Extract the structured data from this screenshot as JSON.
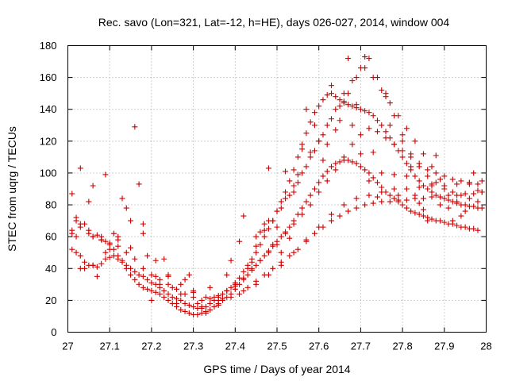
{
  "chart_data": {
    "type": "scatter",
    "title": "Rec. savo (Lon=321, Lat=-12, h=HE), days 026-027, 2014, window 004",
    "xlabel": "GPS time / Days of year 2014",
    "ylabel": "STEC from uqrg / TECUs",
    "xlim": [
      27,
      28
    ],
    "ylim": [
      0,
      180
    ],
    "xticks": [
      "27",
      "27.1",
      "27.2",
      "27.3",
      "27.4",
      "27.5",
      "27.6",
      "27.7",
      "27.8",
      "27.9",
      "28"
    ],
    "yticks": [
      "0",
      "20",
      "40",
      "60",
      "80",
      "100",
      "120",
      "140",
      "160",
      "180"
    ],
    "grid": true,
    "marker": "+",
    "color": "#cc0000",
    "series": [
      {
        "x": [
          27.01,
          27.01,
          27.02,
          27.03,
          27.04,
          27.05,
          27.06,
          27.07,
          27.08,
          27.09,
          27.1,
          27.11,
          27.12,
          27.13,
          27.14,
          27.15,
          27.16,
          27.17,
          27.18,
          27.19,
          27.2,
          27.21,
          27.22,
          27.23,
          27.24,
          27.25,
          27.26,
          27.27,
          27.28,
          27.29,
          27.3,
          27.31,
          27.32,
          27.33,
          27.34,
          27.35,
          27.36,
          27.37,
          27.38,
          27.39,
          27.4,
          27.41,
          27.42,
          27.43,
          27.44,
          27.45,
          27.46,
          27.47,
          27.48,
          27.49,
          27.5,
          27.51,
          27.52,
          27.53,
          27.54,
          27.55,
          27.56,
          27.57,
          27.58,
          27.59,
          27.6,
          27.61,
          27.62,
          27.63,
          27.64,
          27.65,
          27.66,
          27.67,
          27.68,
          27.69,
          27.7,
          27.71,
          27.72,
          27.73,
          27.74,
          27.75,
          27.76,
          27.77,
          27.78,
          27.79,
          27.8,
          27.81,
          27.82,
          27.83,
          27.84,
          27.85,
          27.86,
          27.87,
          27.88,
          27.89,
          27.9,
          27.91,
          27.92,
          27.93,
          27.94,
          27.95,
          27.96,
          27.97,
          27.98,
          27.99
        ],
        "y": [
          62,
          64,
          60,
          66,
          68,
          62,
          60,
          61,
          58,
          57,
          55,
          52,
          48,
          45,
          42,
          40,
          38,
          36,
          35,
          33,
          31,
          30,
          28,
          26,
          24,
          22,
          21,
          20,
          18,
          17,
          16,
          15,
          15,
          16,
          18,
          20,
          22,
          24,
          26,
          28,
          31,
          34,
          38,
          42,
          46,
          50,
          55,
          60,
          65,
          70,
          76,
          82,
          88,
          95,
          102,
          110,
          118,
          125,
          132,
          138,
          142,
          146,
          149,
          150,
          148,
          146,
          144,
          143,
          142,
          141,
          140,
          139,
          138,
          136,
          133,
          130,
          126,
          122,
          118,
          114,
          110,
          106,
          102,
          98,
          95,
          92,
          90,
          88,
          86,
          85,
          84,
          83,
          82,
          81,
          80,
          80,
          79,
          79,
          78,
          78
        ]
      },
      {
        "x": [
          27.01,
          27.02,
          27.03,
          27.04,
          27.05,
          27.06,
          27.07,
          27.08,
          27.09,
          27.1,
          27.11,
          27.12,
          27.13,
          27.14,
          27.15,
          27.16,
          27.17,
          27.18,
          27.19,
          27.2,
          27.21,
          27.22,
          27.23,
          27.24,
          27.25,
          27.26,
          27.27,
          27.28,
          27.29,
          27.3,
          27.31,
          27.32,
          27.33,
          27.34,
          27.35,
          27.36,
          27.37,
          27.38,
          27.39,
          27.4,
          27.41,
          27.42,
          27.43,
          27.44,
          27.45,
          27.46,
          27.47,
          27.48,
          27.49,
          27.5,
          27.51,
          27.52,
          27.53,
          27.54,
          27.55,
          27.56,
          27.57,
          27.58,
          27.59,
          27.6,
          27.61,
          27.62,
          27.63,
          27.64,
          27.65,
          27.66,
          27.67,
          27.68,
          27.69,
          27.7,
          27.71,
          27.72,
          27.73,
          27.74,
          27.75,
          27.76,
          27.77,
          27.78,
          27.79,
          27.8,
          27.81,
          27.82,
          27.83,
          27.84,
          27.85,
          27.86,
          27.87,
          27.88,
          27.89,
          27.9,
          27.91,
          27.92,
          27.93,
          27.94,
          27.95,
          27.96,
          27.97,
          27.98
        ],
        "y": [
          52,
          50,
          48,
          44,
          42,
          42,
          41,
          43,
          46,
          47,
          48,
          46,
          44,
          40,
          36,
          33,
          30,
          28,
          27,
          26,
          25,
          24,
          22,
          20,
          18,
          16,
          14,
          13,
          12,
          11,
          11,
          12,
          13,
          14,
          16,
          18,
          20,
          22,
          24,
          27,
          30,
          33,
          36,
          39,
          42,
          45,
          48,
          51,
          54,
          57,
          60,
          63,
          66,
          70,
          74,
          78,
          82,
          86,
          90,
          94,
          98,
          101,
          104,
          106,
          107,
          108,
          108,
          107,
          106,
          104,
          102,
          100,
          97,
          94,
          91,
          88,
          86,
          84,
          82,
          80,
          78,
          76,
          75,
          74,
          73,
          72,
          71,
          70,
          70,
          69,
          68,
          68,
          67,
          66,
          66,
          65,
          65,
          64
        ]
      },
      {
        "x": [
          27.02,
          27.03,
          27.05,
          27.06,
          27.08,
          27.1,
          27.12,
          27.14,
          27.16,
          27.18,
          27.2,
          27.22,
          27.24,
          27.26,
          27.28,
          27.3,
          27.32,
          27.34,
          27.36,
          27.38,
          27.4,
          27.42,
          27.44,
          27.46,
          27.48,
          27.5,
          27.52,
          27.54,
          27.56,
          27.58,
          27.6,
          27.62,
          27.64,
          27.66,
          27.68,
          27.7,
          27.72,
          27.74,
          27.76,
          27.78,
          27.8,
          27.82,
          27.84,
          27.86,
          27.88,
          27.9,
          27.92,
          27.94,
          27.96,
          27.98
        ],
        "y": [
          70,
          68,
          64,
          60,
          58,
          56,
          54,
          50,
          46,
          40,
          36,
          33,
          30,
          27,
          24,
          22,
          20,
          21,
          23,
          26,
          30,
          34,
          40,
          45,
          50,
          55,
          62,
          68,
          74,
          80,
          88,
          95,
          102,
          110,
          118,
          124,
          128,
          126,
          122,
          118,
          114,
          110,
          106,
          102,
          100,
          98,
          96,
          95,
          94,
          93
        ]
      },
      {
        "x": [
          27.41,
          27.43,
          27.45,
          27.47,
          27.49,
          27.51,
          27.53,
          27.55,
          27.57,
          27.59,
          27.61,
          27.63,
          27.65,
          27.67,
          27.69,
          27.71,
          27.73,
          27.75,
          27.77,
          27.79,
          27.81,
          27.83,
          27.85,
          27.87,
          27.89,
          27.91,
          27.93,
          27.95,
          27.97,
          27.99
        ],
        "y": [
          24,
          28,
          32,
          36,
          40,
          44,
          48,
          52,
          57,
          62,
          66,
          70,
          73,
          76,
          78,
          80,
          81,
          82,
          82,
          83,
          83,
          84,
          84,
          85,
          85,
          86,
          86,
          87,
          87,
          88
        ]
      },
      {
        "x": [
          27.45,
          27.47,
          27.49,
          27.51,
          27.53,
          27.55,
          27.57,
          27.59,
          27.61,
          27.63,
          27.65,
          27.67,
          27.69,
          27.71,
          27.73,
          27.75,
          27.77,
          27.79,
          27.81,
          27.83,
          27.85,
          27.87,
          27.89
        ],
        "y": [
          60,
          64,
          70,
          78,
          86,
          94,
          104,
          114,
          124,
          134,
          142,
          150,
          160,
          166,
          160,
          152,
          144,
          136,
          128,
          120,
          112,
          104,
          96
        ]
      },
      {
        "x": [
          27.48,
          27.5,
          27.52,
          27.54,
          27.56,
          27.58,
          27.6,
          27.62,
          27.64,
          27.66,
          27.68,
          27.7,
          27.72,
          27.74,
          27.76,
          27.78,
          27.8,
          27.82,
          27.84,
          27.86,
          27.88,
          27.9,
          27.92,
          27.94,
          27.96,
          27.98
        ],
        "y": [
          70,
          76,
          84,
          92,
          100,
          110,
          120,
          130,
          140,
          150,
          158,
          166,
          172,
          160,
          148,
          136,
          124,
          112,
          104,
          98,
          94,
          90,
          88,
          86,
          84,
          82
        ]
      },
      {
        "x": [
          27.03,
          27.06,
          27.09,
          27.12,
          27.15,
          27.18,
          27.21,
          27.24,
          27.27,
          27.3,
          27.33,
          27.36,
          27.39,
          27.42,
          27.45,
          27.48,
          27.51,
          27.54,
          27.57,
          27.6,
          27.63,
          27.66,
          27.69,
          27.72,
          27.75,
          27.78,
          27.81,
          27.84,
          27.87,
          27.9,
          27.93,
          27.96,
          27.99
        ],
        "y": [
          40,
          42,
          50,
          60,
          70,
          62,
          45,
          36,
          30,
          26,
          22,
          20,
          22,
          26,
          30,
          36,
          42,
          50,
          58,
          66,
          74,
          80,
          84,
          86,
          88,
          90,
          90,
          91,
          92,
          92,
          93,
          94,
          95
        ]
      },
      {
        "x": [
          27.01,
          27.02,
          27.03,
          27.04,
          27.05,
          27.06,
          27.07,
          27.08,
          27.09,
          27.1,
          27.11,
          27.12,
          27.13,
          27.14,
          27.15,
          27.16,
          27.17,
          27.18,
          27.19,
          27.2,
          27.21,
          27.22,
          27.23,
          27.24,
          27.25,
          27.26,
          27.27,
          27.28,
          27.29,
          27.3,
          27.31,
          27.32,
          27.33,
          27.34,
          27.35,
          27.36,
          27.37,
          27.38,
          27.39,
          27.4,
          27.41,
          27.42,
          27.43,
          27.44,
          27.45,
          27.46,
          27.47,
          27.48,
          27.49,
          27.5,
          27.51,
          27.52,
          27.53,
          27.54,
          27.55,
          27.56,
          27.57,
          27.58,
          27.59,
          27.6,
          27.61,
          27.62,
          27.63,
          27.64,
          27.65,
          27.66,
          27.67,
          27.68,
          27.69,
          27.7,
          27.71,
          27.72,
          27.73,
          27.74,
          27.75,
          27.76,
          27.77,
          27.78,
          27.79,
          27.8,
          27.81,
          27.82,
          27.83,
          27.84,
          27.85,
          27.86,
          27.87,
          27.88,
          27.89,
          27.9,
          27.91,
          27.92,
          27.93,
          27.94,
          27.95,
          27.96,
          27.97,
          27.98,
          27.99
        ],
        "y": [
          87,
          72,
          103,
          40,
          82,
          92,
          35,
          60,
          99,
          52,
          62,
          58,
          84,
          78,
          53,
          129,
          93,
          68,
          48,
          20,
          35,
          30,
          46,
          35,
          28,
          18,
          24,
          33,
          36,
          25,
          18,
          16,
          12,
          28,
          22,
          17,
          21,
          36,
          45,
          29,
          57,
          73,
          40,
          44,
          54,
          63,
          68,
          103,
          55,
          66,
          50,
          101,
          59,
          88,
          99,
          115,
          140,
          113,
          130,
          120,
          108,
          118,
          155,
          127,
          133,
          145,
          172,
          130,
          143,
          112,
          173,
          95,
          113,
          85,
          100,
          150,
          130,
          99,
          86,
          120,
          98,
          104,
          86,
          81,
          77,
          70,
          93,
          111,
          80,
          92,
          78,
          70,
          82,
          73,
          76,
          93,
          100,
          89,
          88
        ]
      }
    ]
  }
}
